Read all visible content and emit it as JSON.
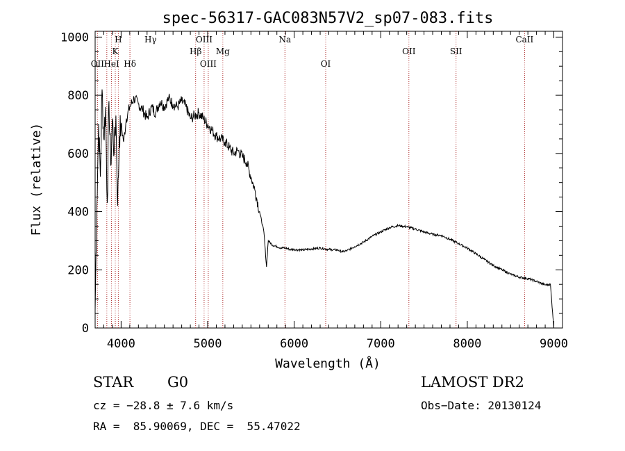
{
  "chart_data": {
    "type": "line",
    "title": "spec-56317-GAC083N57V2_sp07-083.fits",
    "xlabel": "Wavelength (Å)",
    "ylabel": "Flux (relative)",
    "xlim": [
      3700,
      9100
    ],
    "ylim": [
      0,
      1020
    ],
    "xticks": [
      4000,
      5000,
      6000,
      7000,
      8000,
      9000
    ],
    "yticks": [
      0,
      200,
      400,
      600,
      800,
      1000
    ],
    "grid": false,
    "series": [
      {
        "x": [
          3700,
          3720,
          3740,
          3760,
          3780,
          3800,
          3820,
          3840,
          3860,
          3880,
          3900,
          3920,
          3940,
          3960,
          3980,
          4000,
          4030,
          4060,
          4100,
          4150,
          4200,
          4250,
          4300,
          4350,
          4400,
          4450,
          4500,
          4550,
          4600,
          4650,
          4700,
          4750,
          4800,
          4850,
          4900,
          4950,
          5000,
          5050,
          5100,
          5150,
          5200,
          5250,
          5300,
          5350,
          5400,
          5450,
          5500,
          5550,
          5600,
          5650,
          5680,
          5700,
          5750,
          5800,
          5850,
          5900,
          5950,
          6000,
          6100,
          6200,
          6300,
          6400,
          6500,
          6560,
          6600,
          6700,
          6800,
          6900,
          7000,
          7100,
          7200,
          7300,
          7400,
          7500,
          7600,
          7700,
          7800,
          7900,
          8000,
          8100,
          8200,
          8300,
          8400,
          8500,
          8600,
          8700,
          8800,
          8900,
          8960,
          9000
        ],
        "y": [
          60,
          420,
          700,
          520,
          820,
          650,
          760,
          430,
          780,
          560,
          720,
          600,
          730,
          420,
          660,
          700,
          640,
          720,
          760,
          790,
          770,
          750,
          720,
          760,
          740,
          780,
          760,
          790,
          770,
          760,
          780,
          760,
          720,
          730,
          740,
          720,
          700,
          680,
          660,
          650,
          640,
          620,
          600,
          610,
          590,
          570,
          520,
          470,
          400,
          330,
          210,
          300,
          285,
          280,
          275,
          275,
          270,
          270,
          268,
          272,
          275,
          270,
          268,
          262,
          265,
          280,
          295,
          315,
          330,
          345,
          352,
          348,
          340,
          330,
          322,
          318,
          305,
          290,
          275,
          255,
          235,
          215,
          200,
          185,
          175,
          170,
          160,
          148,
          150,
          0
        ],
        "color": "#000000"
      }
    ],
    "lines": [
      {
        "label": "Hγ",
        "x": 4340,
        "row": 0
      },
      {
        "label": "H",
        "x": 3968,
        "row": 0
      },
      {
        "label": "K",
        "x": 3933,
        "row": 1
      },
      {
        "label": "OII",
        "x": 3727,
        "row": 2
      },
      {
        "label": "HeI",
        "x": 3889,
        "row": 2
      },
      {
        "label": "Hδ",
        "x": 4102,
        "row": 2
      },
      {
        "label": "OIII",
        "x": 4959,
        "row": 0
      },
      {
        "label": "Hβ",
        "x": 4861,
        "row": 1
      },
      {
        "label": "OIII",
        "x": 5007,
        "row": 2
      },
      {
        "label": "Mg",
        "x": 5175,
        "row": 1
      },
      {
        "label": "Na",
        "x": 5893,
        "row": 0
      },
      {
        "label": "OI",
        "x": 6364,
        "row": 2
      },
      {
        "label": "OII",
        "x": 7325,
        "row": 1
      },
      {
        "label": "SII",
        "x": 7870,
        "row": 1
      },
      {
        "label": "CaII",
        "x": 8662,
        "row": 0
      }
    ],
    "line_x_positions": [
      3727,
      3835,
      3889,
      3933,
      3968,
      4102,
      4861,
      4959,
      5007,
      5175,
      5893,
      6364,
      7325,
      7870,
      8662
    ]
  },
  "info": {
    "object_class": "STAR",
    "subclass": "G0",
    "survey": "LAMOST DR2",
    "cz": "cz = −28.8 ± 7.6 km/s",
    "obs_date": "Obs−Date: 20130124",
    "coords": "RA =  85.90069, DEC =  55.47022"
  }
}
